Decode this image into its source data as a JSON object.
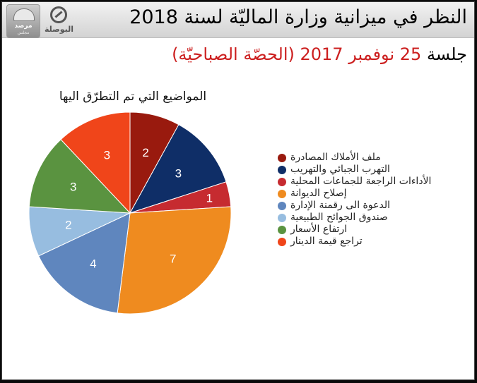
{
  "header": {
    "title": "النظر في ميزانية وزارة الماليّة لسنة 2018",
    "logo_left_text": "مرصد",
    "logo_left_subtext": "مجلس",
    "logo_right_text": "البوصلة"
  },
  "subtitle": {
    "lead": "جلسة",
    "rest": "25 نوفمبر 2017 (الحصّة الصباحيّة)",
    "lead_color": "#000000",
    "rest_color": "#cc1f1f"
  },
  "chart_data": {
    "type": "pie",
    "title": "المواضيع التي تم التطرّق اليها",
    "legend_position": "right",
    "data_labels": true,
    "slices": [
      {
        "label": "ملف الأملاك المصادرة",
        "value": 2,
        "color": "#991a0e"
      },
      {
        "label": "التهرب الجبائي والتهريب",
        "value": 3,
        "color": "#0f2e67"
      },
      {
        "label": "الأداءات الراجعة للجماعات المحلية",
        "value": 1,
        "color": "#c62b30"
      },
      {
        "label": "إصلاح الديوانة",
        "value": 7,
        "color": "#ef8b1f"
      },
      {
        "label": "الدعوة الى رقمنة الإدارة",
        "value": 4,
        "color": "#5f86be"
      },
      {
        "label": "صندوق الجوائح الطبيعية",
        "value": 2,
        "color": "#97bde0"
      },
      {
        "label": "ارتفاع الأسعار",
        "value": 3,
        "color": "#5a9340"
      },
      {
        "label": "تراجع قيمة الدينار",
        "value": 3,
        "color": "#f0451a"
      }
    ]
  }
}
